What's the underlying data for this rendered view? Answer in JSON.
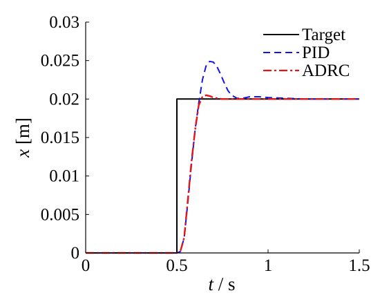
{
  "chart_data": {
    "type": "line",
    "xlabel": {
      "var": "t",
      "unit": " / s"
    },
    "ylabel": {
      "var": "x",
      "unit": " [m]"
    },
    "xlim": [
      0,
      1.5
    ],
    "ylim": [
      0,
      0.03
    ],
    "xticks": [
      0,
      0.5,
      1,
      1.5
    ],
    "xtick_labels": [
      "0",
      "0.5",
      "1",
      "1.5"
    ],
    "yticks": [
      0,
      0.005,
      0.01,
      0.015,
      0.02,
      0.025,
      0.03
    ],
    "ytick_labels": [
      "0",
      "0.005",
      "0.01",
      "0.015",
      "0.02",
      "0.025",
      "0.03"
    ],
    "grid": false,
    "legend_position": "top-right",
    "series": [
      {
        "name": "Target",
        "color": "#000000",
        "dash": "solid",
        "x": [
          0,
          0.5,
          0.5,
          1.5
        ],
        "y": [
          0,
          0,
          0.02,
          0.02
        ]
      },
      {
        "name": "PID",
        "color": "#1414e6",
        "dash": "dashed",
        "x": [
          0,
          0.5,
          0.52,
          0.54,
          0.56,
          0.58,
          0.6,
          0.62,
          0.64,
          0.66,
          0.68,
          0.7,
          0.72,
          0.74,
          0.76,
          0.78,
          0.8,
          0.83,
          0.86,
          0.9,
          0.95,
          1.0,
          1.1,
          1.2,
          1.5
        ],
        "y": [
          0,
          0,
          0.0002,
          0.002,
          0.0065,
          0.0115,
          0.016,
          0.0195,
          0.0225,
          0.0243,
          0.0249,
          0.0248,
          0.0242,
          0.0232,
          0.0221,
          0.0211,
          0.0205,
          0.0201,
          0.0201,
          0.0203,
          0.0203,
          0.0202,
          0.0201,
          0.02,
          0.02
        ]
      },
      {
        "name": "ADRC",
        "color": "#e61414",
        "dash": "dashdot",
        "x": [
          0,
          0.5,
          0.52,
          0.54,
          0.56,
          0.58,
          0.6,
          0.62,
          0.64,
          0.66,
          0.68,
          0.7,
          0.72,
          0.75,
          0.8,
          0.9,
          1.0,
          1.5
        ],
        "y": [
          0,
          0,
          0.0003,
          0.002,
          0.0068,
          0.0118,
          0.016,
          0.0192,
          0.0203,
          0.0205,
          0.0204,
          0.0202,
          0.0201,
          0.02,
          0.02,
          0.02,
          0.02,
          0.02
        ]
      }
    ]
  }
}
